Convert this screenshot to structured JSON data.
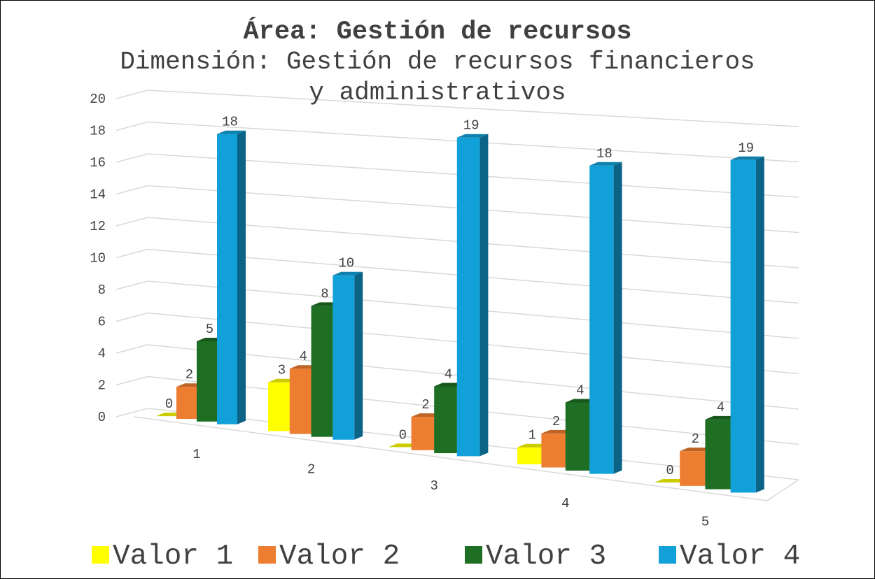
{
  "chart_data": {
    "type": "bar3d",
    "title": "Área: Gestión de recursos",
    "subtitle": "Dimensión: Gestión de recursos financieros y administrativos",
    "categories": [
      "1",
      "2",
      "3",
      "4",
      "5"
    ],
    "series": [
      {
        "name": "Valor 1",
        "color": "#ffff00",
        "values": [
          0,
          3,
          0,
          1,
          0
        ]
      },
      {
        "name": "Valor 2",
        "color": "#ed7d31",
        "values": [
          2,
          4,
          2,
          2,
          2
        ]
      },
      {
        "name": "Valor 3",
        "color": "#1e6e24",
        "values": [
          5,
          8,
          4,
          4,
          4
        ]
      },
      {
        "name": "Valor 4",
        "color": "#12a0d8",
        "values": [
          18,
          10,
          19,
          18,
          19
        ]
      }
    ],
    "ylim": [
      0,
      20
    ],
    "yticks": [
      0,
      2,
      4,
      6,
      8,
      10,
      12,
      14,
      16,
      18,
      20
    ],
    "grid": true,
    "legend": "bottom"
  }
}
